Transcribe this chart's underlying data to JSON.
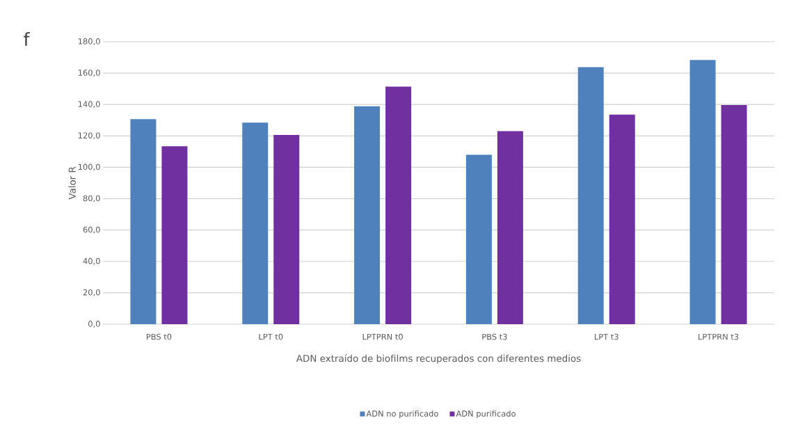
{
  "chart_data": {
    "type": "bar",
    "xlabel": "ADN extraído de biofilms recuperados con diferentes medios",
    "ylabel": "Valor R",
    "annotations": [
      "f"
    ],
    "categories": [
      "PBS t0",
      "LPT t0",
      "LPTPRN t0",
      "PBS t3",
      "LPT t3",
      "LPTPRN t3"
    ],
    "series": [
      {
        "name": "ADN no purificado",
        "color": "#4f81bd",
        "values": [
          130.7,
          128.5,
          138.9,
          108.0,
          163.8,
          168.4
        ]
      },
      {
        "name": "ADN purificado",
        "color": "#7030a0",
        "values": [
          113.4,
          120.6,
          151.4,
          123.0,
          133.5,
          139.7
        ]
      }
    ],
    "ylim": [
      0,
      180
    ],
    "yticks": [
      {
        "value": 0,
        "label": "0,0"
      },
      {
        "value": 20,
        "label": "20,0"
      },
      {
        "value": 40,
        "label": "40,0"
      },
      {
        "value": 60,
        "label": "60,0"
      },
      {
        "value": 80,
        "label": "80,0"
      },
      {
        "value": 100,
        "label": "100,0"
      },
      {
        "value": 120,
        "label": "120,0"
      },
      {
        "value": 140,
        "label": "140,0"
      },
      {
        "value": 160,
        "label": "160,0"
      },
      {
        "value": 180,
        "label": "180,0"
      }
    ],
    "grid": "y",
    "legend": "bottom"
  }
}
